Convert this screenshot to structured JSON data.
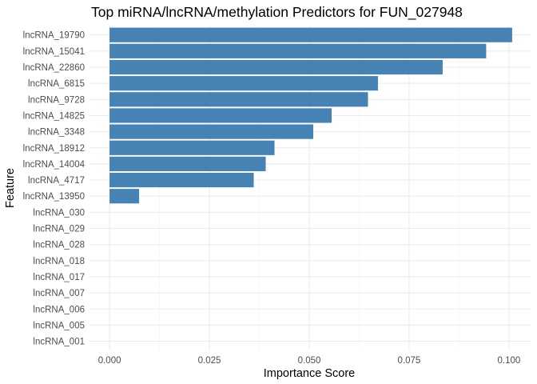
{
  "chart_data": {
    "type": "bar",
    "orientation": "horizontal",
    "title": "Top miRNA/lncRNA/methylation Predictors for FUN_027948",
    "xlabel": "Importance Score",
    "ylabel": "Feature",
    "xlim": [
      0,
      0.1
    ],
    "x_ticks": [
      0.0,
      0.025,
      0.05,
      0.075,
      0.1
    ],
    "x_tick_labels": [
      "0.000",
      "0.025",
      "0.050",
      "0.075",
      "0.100"
    ],
    "grid": true,
    "legend": "none",
    "bar_color": "#4682B4",
    "categories": [
      "lncRNA_19790",
      "lncRNA_15041",
      "lncRNA_22860",
      "lncRNA_6815",
      "lncRNA_9728",
      "lncRNA_14825",
      "lncRNA_3348",
      "lncRNA_18912",
      "lncRNA_14004",
      "lncRNA_4717",
      "lncRNA_13950",
      "lncRNA_030",
      "lncRNA_029",
      "lncRNA_028",
      "lncRNA_018",
      "lncRNA_017",
      "lncRNA_007",
      "lncRNA_006",
      "lncRNA_005",
      "lncRNA_001"
    ],
    "values": [
      0.1008,
      0.0943,
      0.0834,
      0.0672,
      0.0647,
      0.0556,
      0.051,
      0.0413,
      0.0391,
      0.0361,
      0.0074,
      0,
      0,
      0,
      0,
      0,
      0,
      0,
      0,
      0
    ]
  }
}
